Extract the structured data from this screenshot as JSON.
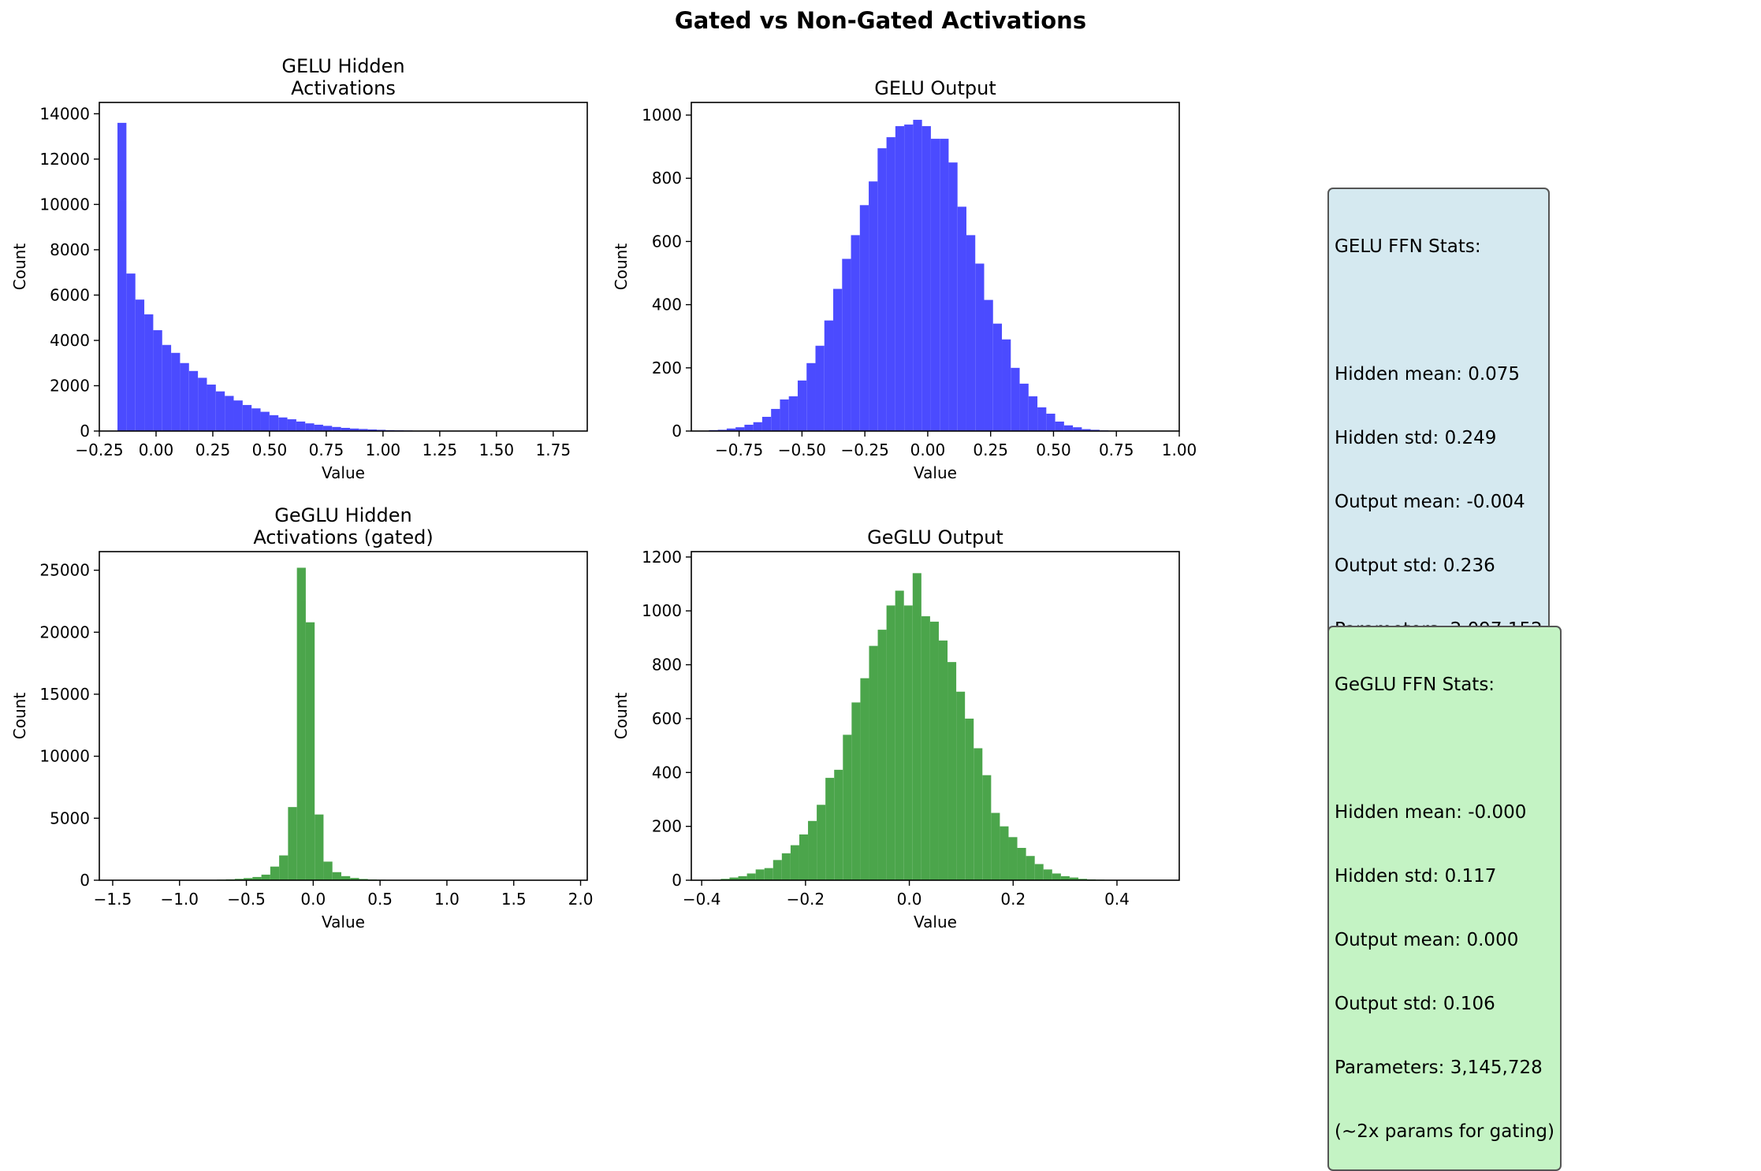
{
  "figure": {
    "title": "Gated vs Non-Gated Activations"
  },
  "colors": {
    "gelu": "#0000ff",
    "geglu": "#008000",
    "gelu_box_bg": "#d5e9f0",
    "geglu_box_bg": "#c4f3c4"
  },
  "chart_data": [
    {
      "type": "histogram",
      "title": "GELU Hidden\nActivations",
      "xlabel": "Value",
      "ylabel": "Count",
      "color": "#0000ff",
      "xlim": [
        -0.25,
        1.9
      ],
      "ylim": [
        0,
        14500
      ],
      "xticks": [
        -0.25,
        0.0,
        0.25,
        0.5,
        0.75,
        1.0,
        1.25,
        1.5,
        1.75
      ],
      "xtick_labels": [
        "−0.25",
        "0.00",
        "0.25",
        "0.50",
        "0.75",
        "1.00",
        "1.25",
        "1.50",
        "1.75"
      ],
      "yticks": [
        0,
        2000,
        4000,
        6000,
        8000,
        10000,
        12000,
        14000
      ],
      "ytick_labels": [
        "0",
        "2000",
        "4000",
        "6000",
        "8000",
        "10000",
        "12000",
        "14000"
      ],
      "bin_start": -0.17,
      "bin_width": 0.0394,
      "counts": [
        13600,
        6950,
        5800,
        5150,
        4450,
        3800,
        3450,
        3000,
        2650,
        2350,
        2050,
        1750,
        1550,
        1350,
        1150,
        1000,
        850,
        700,
        600,
        520,
        420,
        340,
        280,
        230,
        180,
        140,
        110,
        90,
        70,
        55,
        40,
        32,
        25,
        18,
        14,
        10,
        8,
        6,
        5,
        4,
        3,
        3,
        2,
        2,
        1,
        1,
        1,
        1,
        1,
        1
      ]
    },
    {
      "type": "histogram",
      "title": "GELU Output",
      "xlabel": "Value",
      "ylabel": "Count",
      "color": "#0000ff",
      "xlim": [
        -0.94,
        1.0
      ],
      "ylim": [
        0,
        1040
      ],
      "xticks": [
        -0.75,
        -0.5,
        -0.25,
        0.0,
        0.25,
        0.5,
        0.75,
        1.0
      ],
      "xtick_labels": [
        "−0.75",
        "−0.50",
        "−0.25",
        "0.00",
        "0.25",
        "0.50",
        "0.75",
        "1.00"
      ],
      "yticks": [
        0,
        200,
        400,
        600,
        800,
        1000
      ],
      "ytick_labels": [
        "0",
        "200",
        "400",
        "600",
        "800",
        "1000"
      ],
      "bin_start": -0.87,
      "bin_width": 0.0353,
      "counts": [
        3,
        4,
        8,
        12,
        20,
        28,
        45,
        70,
        100,
        110,
        160,
        215,
        270,
        350,
        450,
        545,
        620,
        715,
        790,
        895,
        930,
        965,
        970,
        985,
        965,
        925,
        925,
        850,
        710,
        620,
        530,
        415,
        340,
        290,
        200,
        150,
        110,
        75,
        55,
        30,
        18,
        12,
        6,
        4,
        2,
        1,
        1,
        1,
        1,
        0
      ]
    },
    {
      "type": "histogram",
      "title": "GeGLU Hidden\nActivations (gated)",
      "xlabel": "Value",
      "ylabel": "Count",
      "color": "#008000",
      "xlim": [
        -1.6,
        2.05
      ],
      "ylim": [
        0,
        26500
      ],
      "xticks": [
        -1.5,
        -1.0,
        -0.5,
        0.0,
        0.5,
        1.0,
        1.5,
        2.0
      ],
      "xtick_labels": [
        "−1.5",
        "−1.0",
        "−0.5",
        "0.0",
        "0.5",
        "1.0",
        "1.5",
        "2.0"
      ],
      "yticks": [
        0,
        5000,
        10000,
        15000,
        20000,
        25000
      ],
      "ytick_labels": [
        "0",
        "5000",
        "10000",
        "15000",
        "20000",
        "25000"
      ],
      "bin_start": -1.45,
      "bin_width": 0.0664,
      "counts": [
        1,
        1,
        2,
        3,
        4,
        6,
        8,
        10,
        15,
        20,
        30,
        45,
        70,
        110,
        170,
        260,
        450,
        1100,
        2000,
        5900,
        25200,
        20800,
        5300,
        1500,
        650,
        330,
        180,
        100,
        60,
        40,
        25,
        15,
        10,
        8,
        6,
        4,
        3,
        2,
        2,
        1,
        1,
        1,
        1,
        0,
        1,
        0,
        0,
        0,
        0,
        1
      ]
    },
    {
      "type": "histogram",
      "title": "GeGLU Output",
      "xlabel": "Value",
      "ylabel": "Count",
      "color": "#008000",
      "xlim": [
        -0.42,
        0.52
      ],
      "ylim": [
        0,
        1220
      ],
      "xticks": [
        -0.4,
        -0.2,
        0.0,
        0.2,
        0.4
      ],
      "xtick_labels": [
        "−0.4",
        "−0.2",
        "0.0",
        "0.2",
        "0.4"
      ],
      "yticks": [
        0,
        200,
        400,
        600,
        800,
        1000,
        1200
      ],
      "ytick_labels": [
        "0",
        "200",
        "400",
        "600",
        "800",
        "1000",
        "1200"
      ],
      "bin_start": -0.38,
      "bin_width": 0.0168,
      "counts": [
        2,
        5,
        10,
        15,
        25,
        40,
        45,
        75,
        100,
        130,
        170,
        220,
        280,
        380,
        410,
        540,
        660,
        750,
        870,
        930,
        1020,
        1075,
        1020,
        1140,
        980,
        960,
        890,
        810,
        700,
        600,
        490,
        390,
        250,
        200,
        160,
        120,
        90,
        60,
        40,
        25,
        15,
        10,
        5,
        3,
        2,
        1,
        1,
        1,
        1,
        0
      ]
    }
  ],
  "stats": {
    "gelu": {
      "title": "GELU FFN Stats:",
      "lines": [
        "Hidden mean: 0.075",
        "Hidden std: 0.249",
        "Output mean: -0.004",
        "Output std: 0.236",
        "Parameters: 2,097,152"
      ]
    },
    "geglu": {
      "title": "GeGLU FFN Stats:",
      "lines": [
        "Hidden mean: -0.000",
        "Hidden std: 0.117",
        "Output mean: 0.000",
        "Output std: 0.106",
        "Parameters: 3,145,728",
        "(~2x params for gating)"
      ]
    }
  }
}
